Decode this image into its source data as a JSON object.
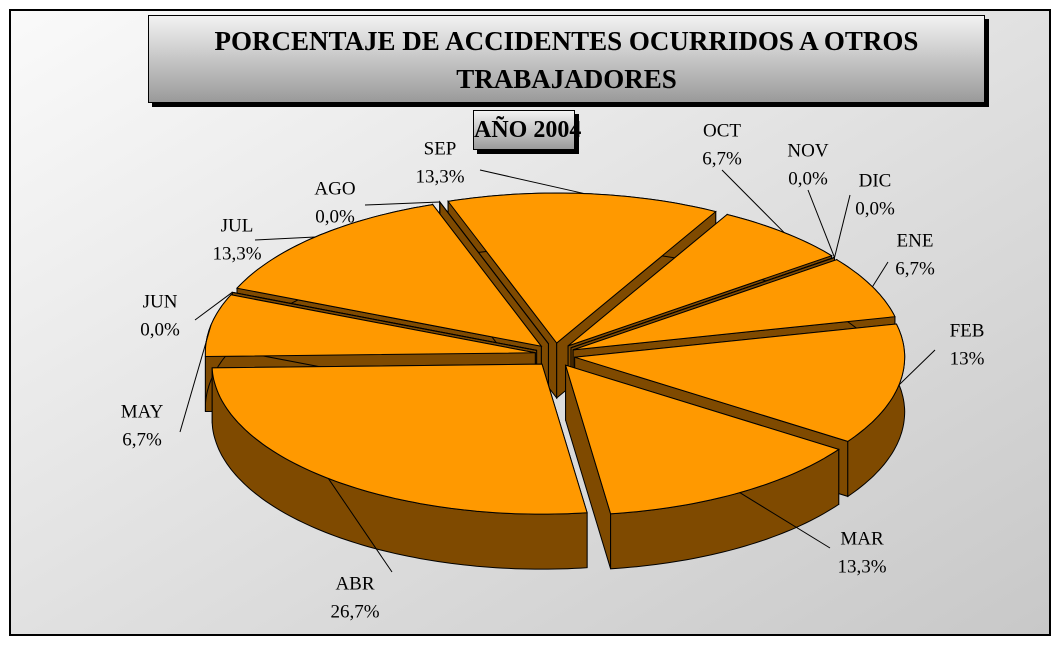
{
  "chart_data": {
    "type": "pie3d",
    "title": "PORCENTAJE DE ACCIDENTES OCURRIDOS A OTROS TRABAJADORES",
    "subtitle": "AÑO 2004",
    "categories": [
      "ENE",
      "FEB",
      "MAR",
      "ABR",
      "MAY",
      "JUN",
      "JUL",
      "AGO",
      "SEP",
      "OCT",
      "NOV",
      "DIC"
    ],
    "values": [
      6.7,
      13,
      13.3,
      26.7,
      6.7,
      0.0,
      13.3,
      0.0,
      13.3,
      6.7,
      0.0,
      0.0
    ],
    "value_labels": [
      "6,7%",
      "13%",
      "13,3%",
      "26,7%",
      "6,7%",
      "0,0%",
      "13,3%",
      "0,0%",
      "13,3%",
      "6,7%",
      "0,0%",
      "0,0%"
    ],
    "color": "#ff9900",
    "side_color": "#7f4a00"
  }
}
